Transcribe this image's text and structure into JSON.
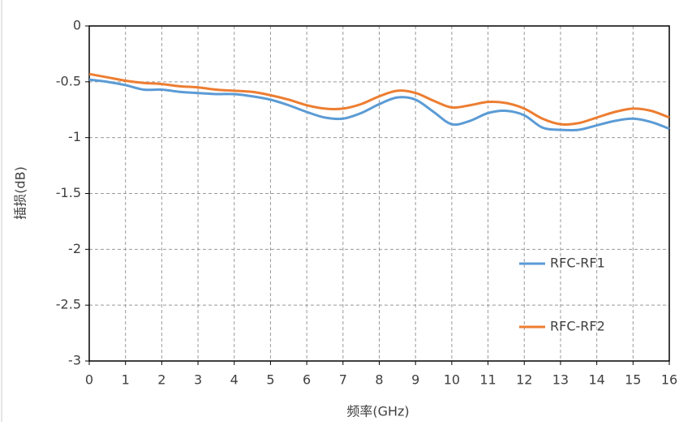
{
  "chart_data": {
    "type": "line",
    "xlabel": "频率(GHz)",
    "ylabel": "插损(dB)",
    "x": [
      0,
      0.5,
      1,
      1.5,
      2,
      2.5,
      3,
      3.5,
      4,
      4.5,
      5,
      5.5,
      6,
      6.5,
      7,
      7.5,
      8,
      8.5,
      9,
      9.5,
      10,
      10.5,
      11,
      11.5,
      12,
      12.5,
      13,
      13.5,
      14,
      14.5,
      15,
      15.5,
      16
    ],
    "series": [
      {
        "name": "RFC-RF1",
        "color": "#5b9bd5",
        "values": [
          -0.48,
          -0.5,
          -0.53,
          -0.57,
          -0.57,
          -0.59,
          -0.6,
          -0.61,
          -0.61,
          -0.63,
          -0.66,
          -0.71,
          -0.77,
          -0.82,
          -0.83,
          -0.78,
          -0.7,
          -0.64,
          -0.66,
          -0.77,
          -0.88,
          -0.85,
          -0.78,
          -0.76,
          -0.8,
          -0.91,
          -0.93,
          -0.93,
          -0.89,
          -0.85,
          -0.83,
          -0.86,
          -0.92
        ]
      },
      {
        "name": "RFC-RF2",
        "color": "#ed7d31",
        "values": [
          -0.43,
          -0.46,
          -0.49,
          -0.51,
          -0.52,
          -0.54,
          -0.55,
          -0.57,
          -0.58,
          -0.59,
          -0.62,
          -0.66,
          -0.71,
          -0.74,
          -0.74,
          -0.7,
          -0.63,
          -0.58,
          -0.6,
          -0.67,
          -0.73,
          -0.71,
          -0.68,
          -0.69,
          -0.74,
          -0.83,
          -0.88,
          -0.87,
          -0.82,
          -0.77,
          -0.74,
          -0.76,
          -0.82
        ]
      }
    ],
    "xlim": [
      0,
      16
    ],
    "xticks": [
      0,
      1,
      2,
      3,
      4,
      5,
      6,
      7,
      8,
      9,
      10,
      11,
      12,
      13,
      14,
      15,
      16
    ],
    "ylim": [
      -3,
      0
    ],
    "yticks": [
      0,
      -0.5,
      -1,
      -1.5,
      -2,
      -2.5,
      -3
    ],
    "grid": true
  }
}
